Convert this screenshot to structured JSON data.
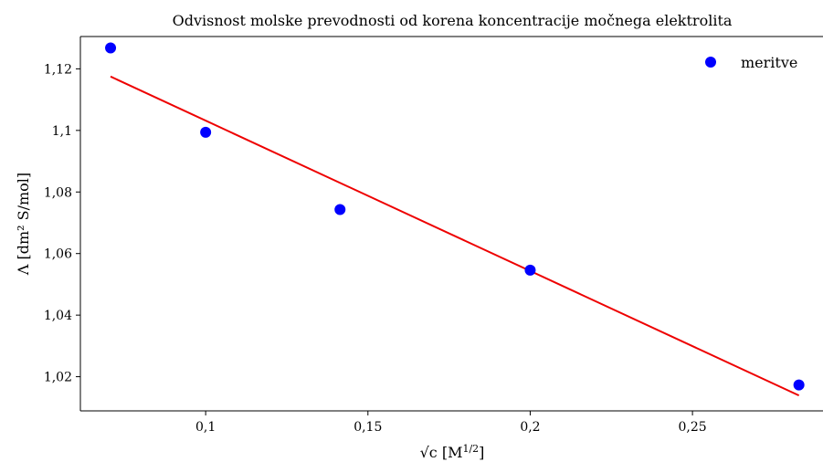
{
  "chart_data": {
    "type": "scatter",
    "title": "Odvisnost molske prevodnosti od korena koncentracije močnega elektrolita",
    "xlabel": "√c [M",
    "xlabel_sup": "1/2",
    "xlabel_end": "]",
    "ylabel": "Λ [dm² S/mol]",
    "xlim": [
      0.0614,
      0.2905
    ],
    "ylim": [
      1.0089,
      1.1305
    ],
    "x_ticks": [
      {
        "value": 0.1,
        "label": "0,1"
      },
      {
        "value": 0.15,
        "label": "0,15"
      },
      {
        "value": 0.2,
        "label": "0,2"
      },
      {
        "value": 0.25,
        "label": "0,25"
      }
    ],
    "y_ticks": [
      {
        "value": 1.02,
        "label": "1,02"
      },
      {
        "value": 1.04,
        "label": "1,04"
      },
      {
        "value": 1.06,
        "label": "1,06"
      },
      {
        "value": 1.08,
        "label": "1,08"
      },
      {
        "value": 1.1,
        "label": "1,1"
      },
      {
        "value": 1.12,
        "label": "1,12"
      }
    ],
    "series": [
      {
        "name": "meritve",
        "kind": "scatter",
        "color": "#0000ff",
        "points": [
          {
            "x": 0.0707,
            "y": 1.1268
          },
          {
            "x": 0.1,
            "y": 1.0994
          },
          {
            "x": 0.1414,
            "y": 1.0743
          },
          {
            "x": 0.2,
            "y": 1.0546
          },
          {
            "x": 0.2828,
            "y": 1.0173
          }
        ]
      },
      {
        "kind": "line",
        "color": "#ee0000",
        "points": [
          {
            "x": 0.0707,
            "y": 1.1175
          },
          {
            "x": 0.2828,
            "y": 1.0139
          }
        ]
      }
    ],
    "legend": {
      "position": "top-right",
      "entries": [
        "meritve"
      ]
    },
    "grid": false
  }
}
